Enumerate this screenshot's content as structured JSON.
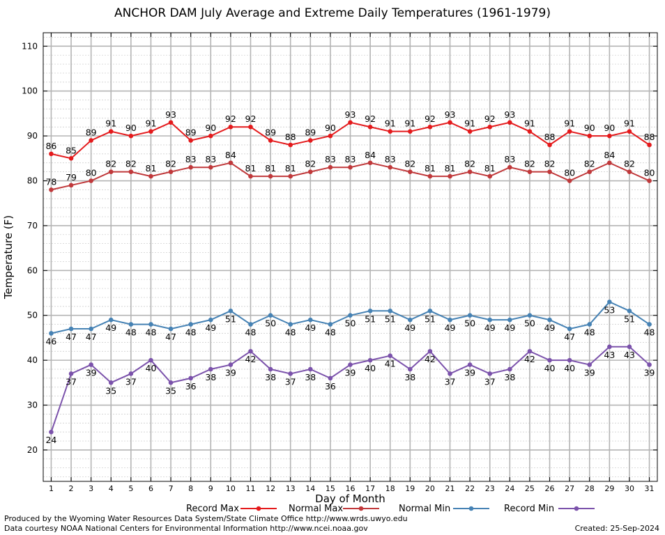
{
  "title": "ANCHOR DAM July Average and Extreme Daily Temperatures (1961-1979)",
  "footer": {
    "produced_by": "Produced by the Wyoming Water Resources Data System/State Climate Office http://www.wrds.uwyo.edu",
    "courtesy": "Data courtesy NOAA National Centers for Environmental Information http://www.ncei.noaa.gov",
    "created": "Created:  25-Sep-2024"
  },
  "chart_data": {
    "type": "line",
    "title": "ANCHOR DAM July Average and Extreme Daily Temperatures (1961-1979)",
    "xlabel": "Day of Month",
    "ylabel": "Temperature (F)",
    "xlim": [
      0.6,
      31.4
    ],
    "ylim": [
      13,
      113
    ],
    "yticks": [
      20,
      30,
      40,
      50,
      60,
      70,
      80,
      90,
      100,
      110
    ],
    "x": [
      1,
      2,
      3,
      4,
      5,
      6,
      7,
      8,
      9,
      10,
      11,
      12,
      13,
      14,
      15,
      16,
      17,
      18,
      19,
      20,
      21,
      22,
      23,
      24,
      25,
      26,
      27,
      28,
      29,
      30,
      31
    ],
    "grid": true,
    "legend_position": "bottom",
    "series": [
      {
        "name": "Record Max",
        "color": "#e41a1c",
        "values": [
          86,
          85,
          89,
          91,
          90,
          91,
          93,
          89,
          90,
          92,
          92,
          89,
          88,
          89,
          90,
          93,
          92,
          91,
          91,
          92,
          93,
          91,
          92,
          93,
          91,
          88,
          91,
          90,
          90,
          91,
          88
        ]
      },
      {
        "name": "Normal Max",
        "color": "#c0393b",
        "values": [
          78,
          79,
          80,
          82,
          82,
          81,
          82,
          83,
          83,
          84,
          81,
          81,
          81,
          82,
          83,
          83,
          84,
          83,
          82,
          81,
          81,
          82,
          81,
          83,
          82,
          82,
          80,
          82,
          84,
          82,
          80
        ]
      },
      {
        "name": "Normal Min",
        "color": "#4682b4",
        "values": [
          46,
          47,
          47,
          49,
          48,
          48,
          47,
          48,
          49,
          51,
          48,
          50,
          48,
          49,
          48,
          50,
          51,
          51,
          49,
          51,
          49,
          50,
          49,
          49,
          50,
          49,
          47,
          48,
          53,
          51,
          48
        ]
      },
      {
        "name": "Record Min",
        "color": "#7b52ab",
        "values": [
          24,
          37,
          39,
          35,
          37,
          40,
          35,
          36,
          38,
          39,
          42,
          38,
          37,
          38,
          36,
          39,
          40,
          41,
          38,
          42,
          37,
          39,
          37,
          38,
          42,
          40,
          40,
          39,
          43,
          43,
          39
        ]
      }
    ]
  }
}
